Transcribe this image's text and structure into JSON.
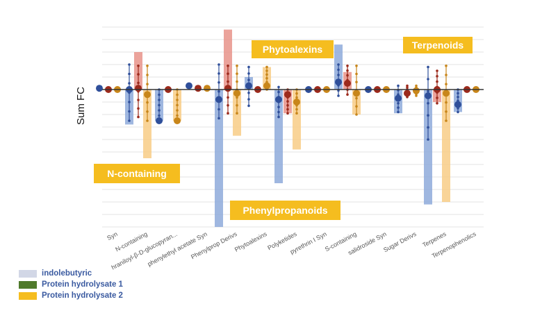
{
  "chart_data": {
    "type": "bar",
    "title": "",
    "xlabel": "",
    "ylabel": "Sum FC",
    "ylim": [
      -11,
      5
    ],
    "grid": true,
    "categories": [
      "Syn",
      "N-containing",
      "hraniloyl-β-D-glucopyran...",
      "phenylethyl acetate Syn",
      "Phenylprop Derivs",
      "Phytoalexins",
      "Polyketides",
      "pyrethrin I Syn",
      "S-containing",
      "salidroside Syn",
      "Sugar Derivs",
      "Terpenes",
      "Terpenophenolics"
    ],
    "series": [
      {
        "name": "indolebutyric",
        "color": "#4472c4",
        "values": [
          0.1,
          -2.8,
          -2.5,
          0.3,
          -11,
          1,
          -7.5,
          0,
          3.6,
          0,
          -1.9,
          -9.2,
          -1.8
        ],
        "means": [
          0.1,
          0,
          -2.5,
          0.3,
          -0.8,
          0.3,
          -0.8,
          0,
          0.6,
          0,
          -0.7,
          -0.5,
          -1.2
        ],
        "err_high": [
          0.1,
          2,
          0,
          0.3,
          2,
          1.8,
          0.2,
          0,
          2,
          0,
          0.3,
          1.8,
          0
        ],
        "err_low": [
          0.1,
          -2.5,
          -2.5,
          0.3,
          -2.3,
          -1.3,
          -2.2,
          0,
          -0.5,
          0,
          -1.8,
          -4,
          -1.8
        ]
      },
      {
        "name": "Protein hydrolysate 1",
        "color": "#c0392b",
        "values": [
          0,
          3,
          0,
          0.1,
          4.8,
          0,
          -1.9,
          0,
          1.4,
          0,
          -0.3,
          -1,
          0
        ],
        "means": [
          0,
          0.1,
          0,
          0.1,
          0.1,
          0,
          -0.4,
          0,
          0.5,
          0,
          -0.3,
          0,
          0
        ],
        "err_high": [
          0,
          1.9,
          0,
          0.1,
          1.9,
          0,
          0,
          0,
          1.9,
          0,
          0.3,
          1.5,
          0
        ],
        "err_low": [
          0,
          -2.2,
          0,
          0.1,
          -1.9,
          0,
          -1.9,
          0,
          -0.4,
          0,
          -0.6,
          -1.1,
          0
        ]
      },
      {
        "name": "Protein hydrolysate 2",
        "color": "#f0a030",
        "values": [
          0,
          -5.5,
          -2.5,
          0.1,
          -3.7,
          1.8,
          -4.8,
          0,
          -2,
          0,
          -0.3,
          -9,
          0
        ],
        "means": [
          0,
          -0.4,
          -2.5,
          0.1,
          -0.3,
          0.3,
          -1,
          0,
          -0.3,
          0,
          -0.1,
          -0.3,
          0
        ],
        "err_high": [
          0,
          1.9,
          0,
          0.1,
          1.9,
          1.8,
          0,
          0,
          1.9,
          0,
          0.3,
          1.9,
          0
        ],
        "err_low": [
          0,
          -2.5,
          -2.5,
          0.1,
          -1.9,
          0,
          -1.9,
          0,
          -2,
          0,
          -0.5,
          -2.5,
          0
        ]
      }
    ],
    "annotations": [
      "N-containing",
      "Phytoalexins",
      "Phenylpropanoids",
      "Terpenoids"
    ]
  },
  "legend": [
    {
      "label": "indolebutyric",
      "color": "#d2d7e6"
    },
    {
      "label": "Protein hydrolysate 1",
      "color": "#4f7a2b"
    },
    {
      "label": "Protein hydrolysate 2",
      "color": "#f5bd1f"
    }
  ]
}
